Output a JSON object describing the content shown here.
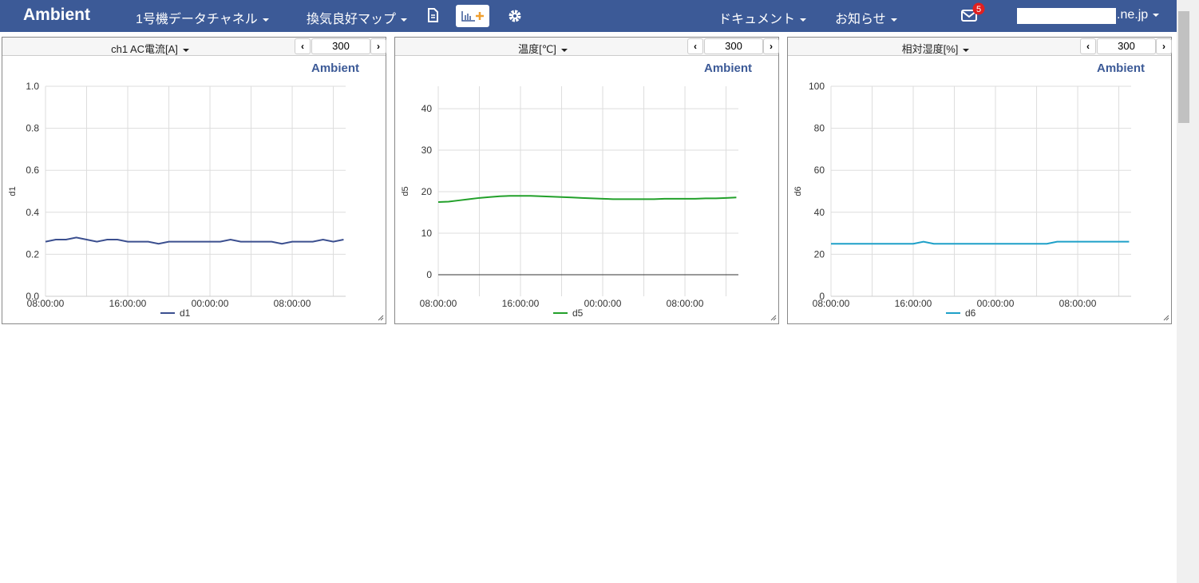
{
  "navbar": {
    "brand": "Ambient",
    "menus": [
      "1号機データチャネル",
      "換気良好マップ"
    ],
    "right_menus": [
      "ドキュメント",
      "お知らせ"
    ],
    "notifications": 5,
    "account_suffix": ".ne.jp"
  },
  "chart_data": [
    {
      "type": "line",
      "title": "ch1 AC電流[A]",
      "points": 300,
      "watermark": "Ambient",
      "y_label": "d1",
      "x": [
        0,
        1,
        2,
        3,
        4,
        5,
        6,
        7,
        8,
        9,
        10,
        11,
        12,
        13,
        14,
        15,
        16,
        17,
        18,
        19,
        20,
        21,
        22,
        23,
        24,
        25,
        26,
        27,
        28,
        29
      ],
      "xlim": [
        0,
        29.2
      ],
      "xticks": [
        {
          "value": 0,
          "label": "08:00:00"
        },
        {
          "value": 4,
          "label": null
        },
        {
          "value": 8,
          "label": "16:00:00"
        },
        {
          "value": 12,
          "label": null
        },
        {
          "value": 16,
          "label": "00:00:00"
        },
        {
          "value": 20,
          "label": null
        },
        {
          "value": 24,
          "label": "08:00:00"
        },
        {
          "value": 28,
          "label": null
        }
      ],
      "ylim": [
        0,
        1
      ],
      "yticks": [
        {
          "value": 0,
          "label": "0.0"
        },
        0.2,
        0.4,
        0.6,
        0.8,
        {
          "value": 1,
          "label": "1.0"
        }
      ],
      "grid": true,
      "series": [
        {
          "name": "d1",
          "color": "#3b4f8f",
          "values": [
            0.26,
            0.27,
            0.27,
            0.28,
            0.27,
            0.26,
            0.27,
            0.27,
            0.26,
            0.26,
            0.26,
            0.25,
            0.26,
            0.26,
            0.26,
            0.26,
            0.26,
            0.26,
            0.27,
            0.26,
            0.26,
            0.26,
            0.26,
            0.25,
            0.26,
            0.26,
            0.26,
            0.27,
            0.26,
            0.27
          ]
        }
      ]
    },
    {
      "type": "line",
      "title": "温度[℃]",
      "points": 300,
      "watermark": "Ambient",
      "y_label": "d5",
      "x": [
        0,
        1,
        2,
        3,
        4,
        5,
        6,
        7,
        8,
        9,
        10,
        11,
        12,
        13,
        14,
        15,
        16,
        17,
        18,
        19,
        20,
        21,
        22,
        23,
        24,
        25,
        26,
        27,
        28,
        29
      ],
      "xlim": [
        0,
        29.2
      ],
      "xticks": [
        {
          "value": 0,
          "label": "08:00:00"
        },
        {
          "value": 4,
          "label": null
        },
        {
          "value": 8,
          "label": "16:00:00"
        },
        {
          "value": 12,
          "label": null
        },
        {
          "value": 16,
          "label": "00:00:00"
        },
        {
          "value": 20,
          "label": null
        },
        {
          "value": 24,
          "label": "08:00:00"
        },
        {
          "value": 28,
          "label": null
        }
      ],
      "ylim": [
        -5.2,
        45.4
      ],
      "yticks": [
        0,
        10,
        20,
        30,
        40
      ],
      "grid": true,
      "series": [
        {
          "name": "d5",
          "color": "#22a02a",
          "values": [
            17.5,
            17.6,
            17.9,
            18.2,
            18.5,
            18.7,
            18.9,
            19.0,
            19.0,
            19.0,
            18.9,
            18.8,
            18.7,
            18.6,
            18.5,
            18.4,
            18.3,
            18.2,
            18.2,
            18.2,
            18.2,
            18.2,
            18.3,
            18.3,
            18.3,
            18.3,
            18.4,
            18.4,
            18.5,
            18.6
          ]
        }
      ]
    },
    {
      "type": "line",
      "title": "相対湿度[%]",
      "points": 300,
      "watermark": "Ambient",
      "y_label": "d6",
      "x": [
        0,
        1,
        2,
        3,
        4,
        5,
        6,
        7,
        8,
        9,
        10,
        11,
        12,
        13,
        14,
        15,
        16,
        17,
        18,
        19,
        20,
        21,
        22,
        23,
        24,
        25,
        26,
        27,
        28,
        29
      ],
      "xlim": [
        0,
        29.2
      ],
      "xticks": [
        {
          "value": 0,
          "label": "08:00:00"
        },
        {
          "value": 4,
          "label": null
        },
        {
          "value": 8,
          "label": "16:00:00"
        },
        {
          "value": 12,
          "label": null
        },
        {
          "value": 16,
          "label": "00:00:00"
        },
        {
          "value": 20,
          "label": null
        },
        {
          "value": 24,
          "label": "08:00:00"
        },
        {
          "value": 28,
          "label": null
        }
      ],
      "ylim": [
        0,
        100
      ],
      "yticks": [
        0,
        20,
        40,
        60,
        80,
        100
      ],
      "grid": true,
      "series": [
        {
          "name": "d6",
          "color": "#1ea0c8",
          "values": [
            25,
            25,
            25,
            25,
            25,
            25,
            25,
            25,
            25,
            26,
            25,
            25,
            25,
            25,
            25,
            25,
            25,
            25,
            25,
            25,
            25,
            25,
            26,
            26,
            26,
            26,
            26,
            26,
            26,
            26
          ]
        }
      ]
    }
  ]
}
